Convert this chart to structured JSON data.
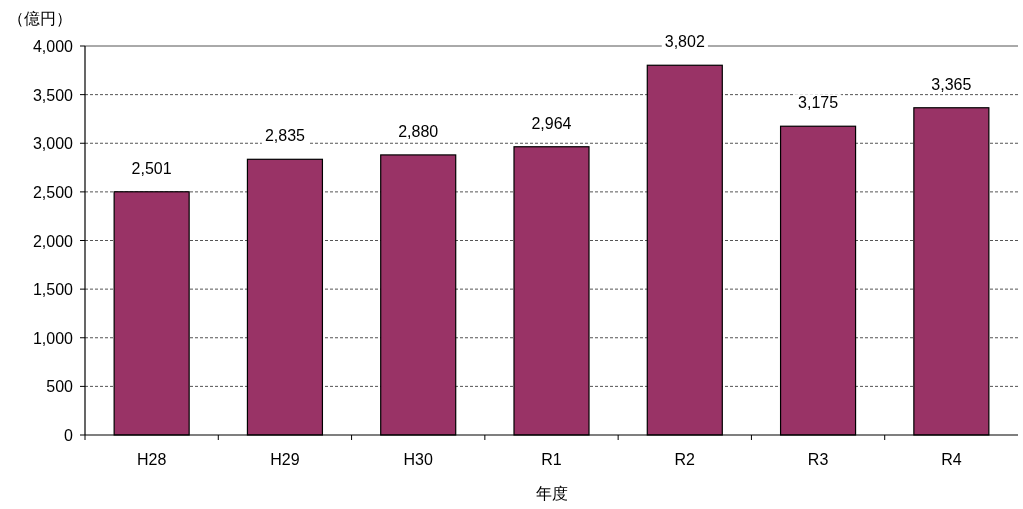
{
  "chart_data": {
    "type": "bar",
    "ylabel": "（億円）",
    "xlabel": "年度",
    "categories": [
      "H28",
      "H29",
      "H30",
      "R1",
      "R2",
      "R3",
      "R4"
    ],
    "values": [
      2501,
      2835,
      2880,
      2964,
      3802,
      3175,
      3365
    ],
    "value_labels": [
      "2,501",
      "2,835",
      "2,880",
      "2,964",
      "3,802",
      "3,175",
      "3,365"
    ],
    "color": "#993366",
    "ylim": [
      0,
      4000
    ],
    "yticks": [
      0,
      500,
      {
        "value": 1000,
        "label": "1,000"
      },
      {
        "value": 1500,
        "label": "1,500"
      },
      {
        "value": 2000,
        "label": "2,000"
      },
      {
        "value": 2500,
        "label": "2,500"
      },
      {
        "value": 3000,
        "label": "3,000"
      },
      {
        "value": 3500,
        "label": "3,500"
      },
      {
        "value": 4000,
        "label": "4,000"
      }
    ],
    "grid": "y"
  }
}
